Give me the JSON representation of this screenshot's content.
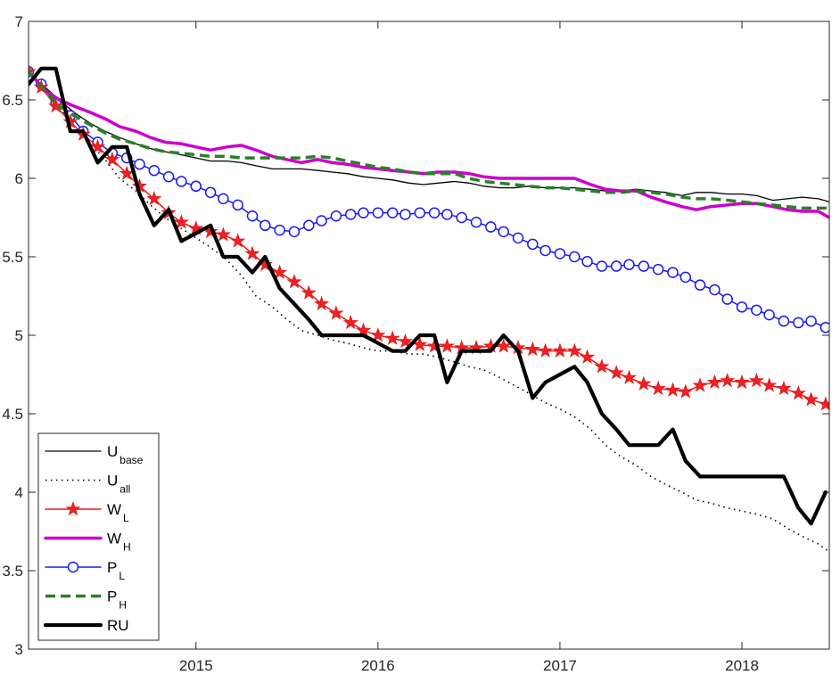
{
  "chart_data": {
    "type": "line",
    "title": "",
    "xlabel": "",
    "ylabel": "",
    "xlim": [
      2014.08,
      2018.48
    ],
    "ylim": [
      3,
      7
    ],
    "x_ticks": [
      2015,
      2016,
      2017,
      2018
    ],
    "x_tick_labels": [
      "2015",
      "2016",
      "2017",
      "2018"
    ],
    "y_ticks": [
      3,
      3.5,
      4,
      4.5,
      5,
      5.5,
      6,
      6.5,
      7
    ],
    "y_tick_labels": [
      "3",
      "3.5",
      "4",
      "4.5",
      "5",
      "5.5",
      "6",
      "6.5",
      "7"
    ],
    "grid": false,
    "legend_position": "bottom-left",
    "series": [
      {
        "name": "U",
        "sub": "base",
        "color": "#000000",
        "style": "thin",
        "x": [
          2014.08,
          2014.17,
          2014.25,
          2014.33,
          2014.42,
          2014.5,
          2014.58,
          2014.67,
          2014.75,
          2014.83,
          2014.92,
          2015.0,
          2015.08,
          2015.17,
          2015.25,
          2015.33,
          2015.42,
          2015.5,
          2015.58,
          2015.67,
          2015.75,
          2015.83,
          2015.92,
          2016.0,
          2016.08,
          2016.17,
          2016.25,
          2016.33,
          2016.42,
          2016.5,
          2016.58,
          2016.67,
          2016.75,
          2016.83,
          2016.92,
          2017.0,
          2017.08,
          2017.17,
          2017.25,
          2017.33,
          2017.42,
          2017.5,
          2017.58,
          2017.67,
          2017.75,
          2017.83,
          2017.92,
          2018.0,
          2018.08,
          2018.17,
          2018.25,
          2018.33,
          2018.42,
          2018.48
        ],
        "y": [
          6.68,
          6.58,
          6.5,
          6.42,
          6.35,
          6.3,
          6.26,
          6.22,
          6.19,
          6.17,
          6.15,
          6.13,
          6.11,
          6.11,
          6.1,
          6.08,
          6.06,
          6.06,
          6.06,
          6.05,
          6.04,
          6.03,
          6.01,
          6.0,
          5.99,
          5.97,
          5.96,
          5.97,
          5.98,
          5.97,
          5.95,
          5.94,
          5.94,
          5.95,
          5.94,
          5.94,
          5.94,
          5.93,
          5.92,
          5.92,
          5.93,
          5.92,
          5.91,
          5.89,
          5.91,
          5.91,
          5.9,
          5.9,
          5.89,
          5.86,
          5.87,
          5.88,
          5.87,
          5.85
        ]
      },
      {
        "name": "U",
        "sub": "all",
        "color": "#000000",
        "style": "dotted",
        "x": [
          2014.08,
          2014.17,
          2014.25,
          2014.33,
          2014.42,
          2014.5,
          2014.58,
          2014.67,
          2014.75,
          2014.83,
          2014.92,
          2015.0,
          2015.08,
          2015.17,
          2015.25,
          2015.33,
          2015.42,
          2015.5,
          2015.58,
          2015.67,
          2015.75,
          2015.83,
          2015.92,
          2016.0,
          2016.08,
          2016.17,
          2016.25,
          2016.33,
          2016.42,
          2016.5,
          2016.58,
          2016.67,
          2016.75,
          2016.83,
          2016.92,
          2017.0,
          2017.08,
          2017.17,
          2017.25,
          2017.33,
          2017.42,
          2017.5,
          2017.58,
          2017.67,
          2017.75,
          2017.83,
          2017.92,
          2018.0,
          2018.08,
          2018.17,
          2018.25,
          2018.33,
          2018.42,
          2018.48
        ],
        "y": [
          6.68,
          6.55,
          6.45,
          6.33,
          6.22,
          6.12,
          6.0,
          5.92,
          5.83,
          5.75,
          5.68,
          5.62,
          5.56,
          5.48,
          5.38,
          5.25,
          5.18,
          5.1,
          5.03,
          5.0,
          4.97,
          4.95,
          4.92,
          4.9,
          4.9,
          4.88,
          4.88,
          4.86,
          4.83,
          4.8,
          4.78,
          4.73,
          4.68,
          4.63,
          4.57,
          4.53,
          4.48,
          4.4,
          4.3,
          4.23,
          4.17,
          4.1,
          4.05,
          4.0,
          3.95,
          3.93,
          3.9,
          3.88,
          3.86,
          3.83,
          3.77,
          3.72,
          3.67,
          3.62
        ]
      },
      {
        "name": "W",
        "sub": "L",
        "color": "#e41a1c",
        "style": "star",
        "x": [
          2014.08,
          2014.15,
          2014.23,
          2014.31,
          2014.38,
          2014.46,
          2014.54,
          2014.62,
          2014.69,
          2014.77,
          2014.85,
          2014.92,
          2015.0,
          2015.08,
          2015.15,
          2015.23,
          2015.31,
          2015.38,
          2015.46,
          2015.54,
          2015.62,
          2015.69,
          2015.77,
          2015.85,
          2015.92,
          2016.0,
          2016.08,
          2016.15,
          2016.23,
          2016.31,
          2016.38,
          2016.46,
          2016.54,
          2016.62,
          2016.69,
          2016.77,
          2016.85,
          2016.92,
          2017.0,
          2017.08,
          2017.15,
          2017.23,
          2017.31,
          2017.38,
          2017.46,
          2017.54,
          2017.62,
          2017.69,
          2017.77,
          2017.85,
          2017.92,
          2018.0,
          2018.08,
          2018.15,
          2018.23,
          2018.31,
          2018.38,
          2018.46
        ],
        "y": [
          6.68,
          6.58,
          6.46,
          6.36,
          6.28,
          6.2,
          6.12,
          6.03,
          5.95,
          5.87,
          5.78,
          5.72,
          5.68,
          5.66,
          5.64,
          5.6,
          5.52,
          5.45,
          5.4,
          5.34,
          5.27,
          5.2,
          5.14,
          5.08,
          5.03,
          5.0,
          4.98,
          4.96,
          4.94,
          4.93,
          4.93,
          4.92,
          4.92,
          4.93,
          4.93,
          4.92,
          4.91,
          4.9,
          4.9,
          4.9,
          4.86,
          4.8,
          4.76,
          4.73,
          4.69,
          4.66,
          4.65,
          4.64,
          4.68,
          4.7,
          4.71,
          4.7,
          4.71,
          4.68,
          4.66,
          4.63,
          4.59,
          4.56
        ]
      },
      {
        "name": "W",
        "sub": "H",
        "color": "#cc00cc",
        "style": "thick",
        "x": [
          2014.08,
          2014.17,
          2014.25,
          2014.33,
          2014.42,
          2014.5,
          2014.58,
          2014.67,
          2014.75,
          2014.83,
          2014.92,
          2015.0,
          2015.08,
          2015.17,
          2015.25,
          2015.33,
          2015.42,
          2015.5,
          2015.58,
          2015.67,
          2015.75,
          2015.83,
          2015.92,
          2016.0,
          2016.08,
          2016.17,
          2016.25,
          2016.33,
          2016.42,
          2016.5,
          2016.58,
          2016.67,
          2016.75,
          2016.83,
          2016.92,
          2017.0,
          2017.08,
          2017.17,
          2017.25,
          2017.33,
          2017.42,
          2017.5,
          2017.58,
          2017.67,
          2017.75,
          2017.83,
          2017.92,
          2018.0,
          2018.08,
          2018.17,
          2018.25,
          2018.33,
          2018.42,
          2018.48
        ],
        "y": [
          6.68,
          6.56,
          6.5,
          6.46,
          6.42,
          6.38,
          6.33,
          6.3,
          6.26,
          6.23,
          6.22,
          6.2,
          6.18,
          6.2,
          6.21,
          6.18,
          6.14,
          6.12,
          6.1,
          6.12,
          6.1,
          6.09,
          6.07,
          6.06,
          6.05,
          6.04,
          6.03,
          6.04,
          6.04,
          6.03,
          6.01,
          6.0,
          6.0,
          6.0,
          6.0,
          6.0,
          6.0,
          5.96,
          5.93,
          5.92,
          5.92,
          5.88,
          5.85,
          5.82,
          5.8,
          5.82,
          5.83,
          5.84,
          5.84,
          5.82,
          5.8,
          5.79,
          5.79,
          5.75
        ]
      },
      {
        "name": "P",
        "sub": "L",
        "color": "#1a1aee",
        "style": "circle",
        "x": [
          2014.08,
          2014.15,
          2014.23,
          2014.31,
          2014.38,
          2014.46,
          2014.54,
          2014.62,
          2014.69,
          2014.77,
          2014.85,
          2014.92,
          2015.0,
          2015.08,
          2015.15,
          2015.23,
          2015.31,
          2015.38,
          2015.46,
          2015.54,
          2015.62,
          2015.69,
          2015.77,
          2015.85,
          2015.92,
          2016.0,
          2016.08,
          2016.15,
          2016.23,
          2016.31,
          2016.38,
          2016.46,
          2016.54,
          2016.62,
          2016.69,
          2016.77,
          2016.85,
          2016.92,
          2017.0,
          2017.08,
          2017.15,
          2017.23,
          2017.31,
          2017.38,
          2017.46,
          2017.54,
          2017.62,
          2017.69,
          2017.77,
          2017.85,
          2017.92,
          2018.0,
          2018.08,
          2018.15,
          2018.23,
          2018.31,
          2018.38,
          2018.46
        ],
        "y": [
          6.68,
          6.6,
          6.48,
          6.4,
          6.3,
          6.23,
          6.16,
          6.13,
          6.09,
          6.05,
          6.01,
          5.98,
          5.95,
          5.91,
          5.87,
          5.83,
          5.76,
          5.7,
          5.67,
          5.66,
          5.7,
          5.73,
          5.76,
          5.77,
          5.78,
          5.78,
          5.78,
          5.77,
          5.78,
          5.78,
          5.77,
          5.75,
          5.72,
          5.69,
          5.66,
          5.62,
          5.58,
          5.54,
          5.52,
          5.5,
          5.47,
          5.44,
          5.44,
          5.45,
          5.44,
          5.42,
          5.4,
          5.37,
          5.32,
          5.29,
          5.23,
          5.18,
          5.16,
          5.13,
          5.09,
          5.08,
          5.09,
          5.05
        ]
      },
      {
        "name": "P",
        "sub": "H",
        "color": "#2a7f2a",
        "style": "dashed",
        "x": [
          2014.08,
          2014.17,
          2014.25,
          2014.33,
          2014.42,
          2014.5,
          2014.58,
          2014.67,
          2014.75,
          2014.83,
          2014.92,
          2015.0,
          2015.08,
          2015.17,
          2015.25,
          2015.33,
          2015.42,
          2015.5,
          2015.58,
          2015.67,
          2015.75,
          2015.83,
          2015.92,
          2016.0,
          2016.08,
          2016.17,
          2016.25,
          2016.33,
          2016.42,
          2016.5,
          2016.58,
          2016.67,
          2016.75,
          2016.83,
          2016.92,
          2017.0,
          2017.08,
          2017.17,
          2017.25,
          2017.33,
          2017.42,
          2017.5,
          2017.58,
          2017.67,
          2017.75,
          2017.83,
          2017.92,
          2018.0,
          2018.08,
          2018.17,
          2018.25,
          2018.33,
          2018.42,
          2018.48
        ],
        "y": [
          6.68,
          6.56,
          6.46,
          6.4,
          6.34,
          6.29,
          6.25,
          6.22,
          6.19,
          6.17,
          6.16,
          6.15,
          6.14,
          6.14,
          6.13,
          6.13,
          6.13,
          6.13,
          6.13,
          6.14,
          6.13,
          6.11,
          6.09,
          6.07,
          6.06,
          6.04,
          6.03,
          6.03,
          6.03,
          6.0,
          5.98,
          5.97,
          5.96,
          5.95,
          5.94,
          5.94,
          5.93,
          5.92,
          5.91,
          5.91,
          5.92,
          5.91,
          5.9,
          5.88,
          5.87,
          5.87,
          5.86,
          5.85,
          5.84,
          5.83,
          5.82,
          5.81,
          5.81,
          5.81
        ]
      },
      {
        "name": "RU",
        "sub": "",
        "color": "#000000",
        "style": "bold",
        "x": [
          2014.08,
          2014.15,
          2014.23,
          2014.31,
          2014.38,
          2014.46,
          2014.54,
          2014.62,
          2014.69,
          2014.77,
          2014.85,
          2014.92,
          2015.0,
          2015.08,
          2015.15,
          2015.23,
          2015.31,
          2015.38,
          2015.46,
          2015.54,
          2015.62,
          2015.69,
          2015.77,
          2015.85,
          2015.92,
          2016.0,
          2016.08,
          2016.15,
          2016.23,
          2016.31,
          2016.38,
          2016.46,
          2016.54,
          2016.62,
          2016.69,
          2016.77,
          2016.85,
          2016.92,
          2017.0,
          2017.08,
          2017.15,
          2017.23,
          2017.31,
          2017.38,
          2017.46,
          2017.54,
          2017.62,
          2017.69,
          2017.77,
          2017.85,
          2017.92,
          2018.0,
          2018.08,
          2018.15,
          2018.23,
          2018.31,
          2018.38,
          2018.46
        ],
        "y": [
          6.6,
          6.7,
          6.7,
          6.3,
          6.3,
          6.1,
          6.2,
          6.2,
          5.9,
          5.7,
          5.8,
          5.6,
          5.65,
          5.7,
          5.5,
          5.5,
          5.4,
          5.5,
          5.3,
          5.2,
          5.1,
          5.0,
          5.0,
          5.0,
          5.0,
          4.95,
          4.9,
          4.9,
          5.0,
          5.0,
          4.7,
          4.9,
          4.9,
          4.9,
          5.0,
          4.9,
          4.6,
          4.7,
          4.75,
          4.8,
          4.7,
          4.5,
          4.4,
          4.3,
          4.3,
          4.3,
          4.4,
          4.2,
          4.1,
          4.1,
          4.1,
          4.1,
          4.1,
          4.1,
          4.1,
          3.9,
          3.8,
          4.0
        ]
      }
    ]
  }
}
